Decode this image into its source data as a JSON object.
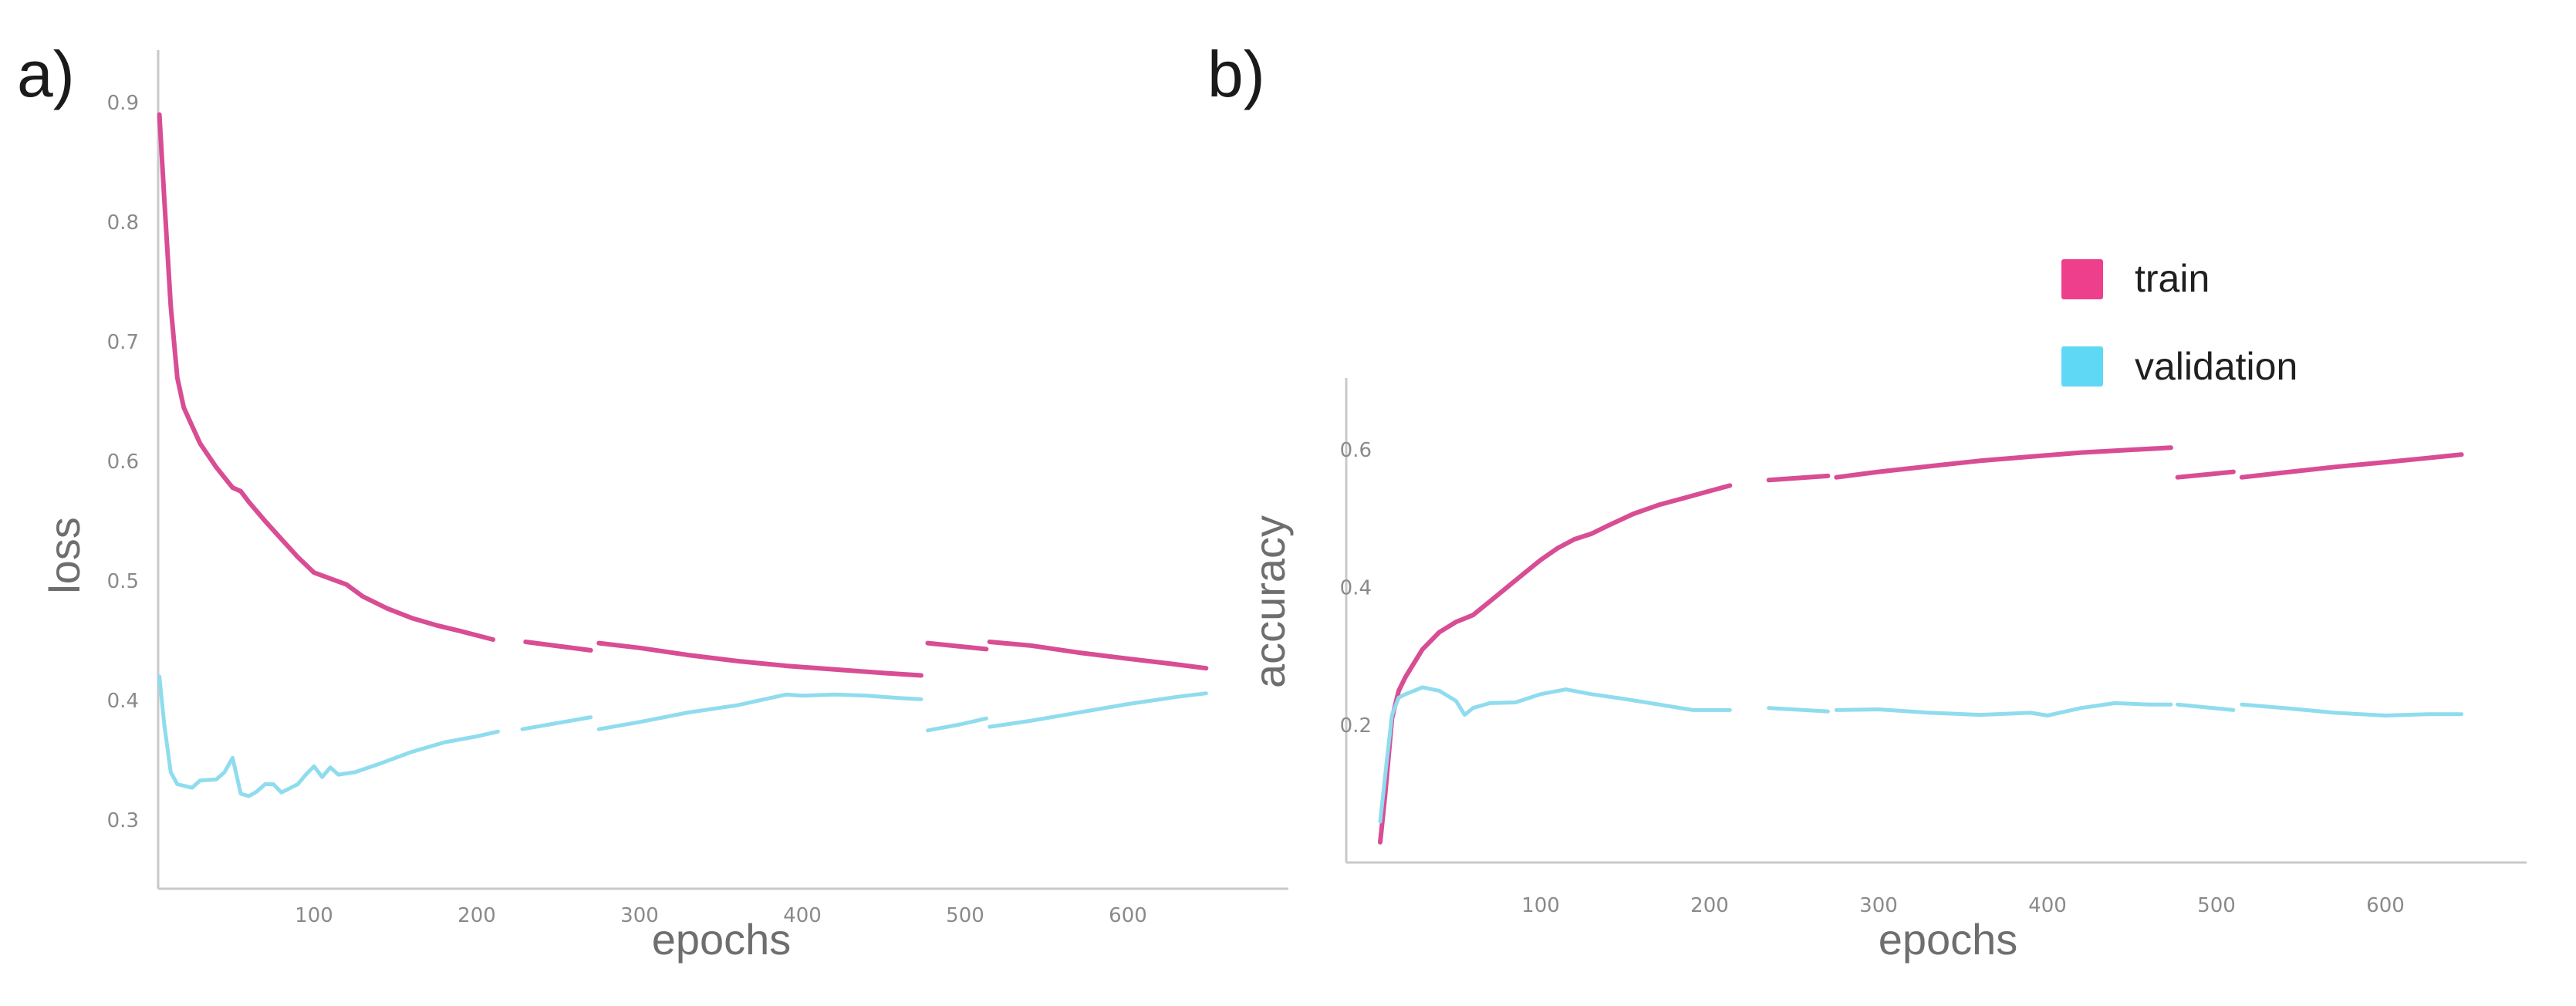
{
  "panel_labels": [
    "a)",
    "b)"
  ],
  "legend": {
    "position": "top-right of panel b",
    "items": [
      {
        "label": "train",
        "color": "#ee3f8c"
      },
      {
        "label": "validation",
        "color": "#5fd8f5"
      }
    ]
  },
  "chart_data": [
    {
      "type": "line",
      "panel": "a)",
      "title": "",
      "xlabel": "epochs",
      "ylabel": "loss",
      "xlim": [
        0,
        700
      ],
      "ylim": [
        0.275,
        0.93
      ],
      "xticks": [
        100,
        200,
        300,
        400,
        500,
        600
      ],
      "yticks": [
        0.3,
        0.4,
        0.5,
        0.6,
        0.7,
        0.8,
        0.9
      ],
      "grid": false,
      "series": [
        {
          "name": "train",
          "color": "#d84d94",
          "segments": [
            [
              [
                5,
                0.89
              ],
              [
                8,
                0.82
              ],
              [
                12,
                0.73
              ],
              [
                16,
                0.67
              ],
              [
                20,
                0.645
              ],
              [
                30,
                0.615
              ],
              [
                40,
                0.595
              ],
              [
                50,
                0.578
              ],
              [
                55,
                0.575
              ],
              [
                60,
                0.566
              ],
              [
                70,
                0.55
              ],
              [
                80,
                0.535
              ],
              [
                90,
                0.52
              ],
              [
                100,
                0.507
              ],
              [
                110,
                0.502
              ],
              [
                120,
                0.497
              ],
              [
                130,
                0.487
              ],
              [
                145,
                0.477
              ],
              [
                160,
                0.469
              ],
              [
                175,
                0.463
              ],
              [
                190,
                0.458
              ],
              [
                210,
                0.451
              ]
            ],
            [
              [
                230,
                0.449
              ],
              [
                270,
                0.442
              ]
            ],
            [
              [
                275,
                0.448
              ],
              [
                300,
                0.444
              ],
              [
                330,
                0.438
              ],
              [
                360,
                0.433
              ],
              [
                390,
                0.429
              ],
              [
                420,
                0.426
              ],
              [
                450,
                0.423
              ],
              [
                473,
                0.421
              ]
            ],
            [
              [
                477,
                0.448
              ],
              [
                513,
                0.443
              ]
            ],
            [
              [
                515,
                0.449
              ],
              [
                540,
                0.446
              ],
              [
                570,
                0.44
              ],
              [
                600,
                0.435
              ],
              [
                625,
                0.431
              ],
              [
                648,
                0.427
              ]
            ]
          ]
        },
        {
          "name": "validation",
          "color": "#8fdcef",
          "segments": [
            [
              [
                5,
                0.42
              ],
              [
                8,
                0.38
              ],
              [
                12,
                0.34
              ],
              [
                16,
                0.33
              ],
              [
                25,
                0.327
              ],
              [
                30,
                0.333
              ],
              [
                40,
                0.334
              ],
              [
                45,
                0.34
              ],
              [
                50,
                0.352
              ],
              [
                55,
                0.322
              ],
              [
                60,
                0.32
              ],
              [
                65,
                0.324
              ],
              [
                70,
                0.33
              ],
              [
                75,
                0.33
              ],
              [
                80,
                0.323
              ],
              [
                90,
                0.33
              ],
              [
                95,
                0.338
              ],
              [
                100,
                0.345
              ],
              [
                105,
                0.336
              ],
              [
                110,
                0.344
              ],
              [
                115,
                0.338
              ],
              [
                125,
                0.34
              ],
              [
                140,
                0.347
              ],
              [
                160,
                0.357
              ],
              [
                180,
                0.365
              ],
              [
                200,
                0.37
              ],
              [
                213,
                0.374
              ]
            ],
            [
              [
                228,
                0.376
              ],
              [
                270,
                0.386
              ]
            ],
            [
              [
                275,
                0.376
              ],
              [
                300,
                0.382
              ],
              [
                330,
                0.39
              ],
              [
                360,
                0.396
              ],
              [
                390,
                0.405
              ],
              [
                400,
                0.404
              ],
              [
                420,
                0.405
              ],
              [
                440,
                0.404
              ],
              [
                460,
                0.402
              ],
              [
                473,
                0.401
              ]
            ],
            [
              [
                477,
                0.375
              ],
              [
                497,
                0.38
              ],
              [
                513,
                0.385
              ]
            ],
            [
              [
                515,
                0.378
              ],
              [
                540,
                0.383
              ],
              [
                570,
                0.39
              ],
              [
                600,
                0.397
              ],
              [
                630,
                0.403
              ],
              [
                648,
                0.406
              ]
            ]
          ]
        }
      ]
    },
    {
      "type": "line",
      "panel": "b)",
      "title": "",
      "xlabel": "epochs",
      "ylabel": "accuracy",
      "xlim": [
        0,
        700
      ],
      "ylim": [
        0,
        0.7
      ],
      "xticks": [
        100,
        200,
        300,
        400,
        500,
        600
      ],
      "yticks": [
        0.2,
        0.4,
        0.6
      ],
      "grid": false,
      "series": [
        {
          "name": "train",
          "color": "#d84d94",
          "segments": [
            [
              [
                5,
                0.03
              ],
              [
                8,
                0.1
              ],
              [
                12,
                0.21
              ],
              [
                16,
                0.25
              ],
              [
                20,
                0.27
              ],
              [
                30,
                0.31
              ],
              [
                40,
                0.335
              ],
              [
                50,
                0.35
              ],
              [
                60,
                0.36
              ],
              [
                70,
                0.38
              ],
              [
                80,
                0.4
              ],
              [
                90,
                0.42
              ],
              [
                100,
                0.44
              ],
              [
                110,
                0.457
              ],
              [
                120,
                0.47
              ],
              [
                130,
                0.478
              ],
              [
                140,
                0.49
              ],
              [
                155,
                0.507
              ],
              [
                170,
                0.52
              ],
              [
                185,
                0.53
              ],
              [
                200,
                0.54
              ],
              [
                212,
                0.548
              ]
            ],
            [
              [
                235,
                0.556
              ],
              [
                270,
                0.562
              ]
            ],
            [
              [
                275,
                0.56
              ],
              [
                300,
                0.568
              ],
              [
                330,
                0.576
              ],
              [
                360,
                0.584
              ],
              [
                390,
                0.59
              ],
              [
                420,
                0.596
              ],
              [
                450,
                0.6
              ],
              [
                473,
                0.603
              ]
            ],
            [
              [
                477,
                0.56
              ],
              [
                510,
                0.568
              ]
            ],
            [
              [
                515,
                0.56
              ],
              [
                540,
                0.567
              ],
              [
                570,
                0.575
              ],
              [
                600,
                0.582
              ],
              [
                625,
                0.588
              ],
              [
                645,
                0.593
              ]
            ]
          ]
        },
        {
          "name": "validation",
          "color": "#8fdcef",
          "segments": [
            [
              [
                5,
                0.06
              ],
              [
                9,
                0.15
              ],
              [
                12,
                0.215
              ],
              [
                16,
                0.24
              ],
              [
                20,
                0.245
              ],
              [
                25,
                0.25
              ],
              [
                30,
                0.255
              ],
              [
                40,
                0.25
              ],
              [
                50,
                0.235
              ],
              [
                55,
                0.215
              ],
              [
                60,
                0.225
              ],
              [
                70,
                0.232
              ],
              [
                85,
                0.233
              ],
              [
                100,
                0.245
              ],
              [
                115,
                0.252
              ],
              [
                130,
                0.245
              ],
              [
                150,
                0.238
              ],
              [
                170,
                0.23
              ],
              [
                190,
                0.222
              ],
              [
                212,
                0.222
              ]
            ],
            [
              [
                235,
                0.225
              ],
              [
                270,
                0.22
              ]
            ],
            [
              [
                275,
                0.222
              ],
              [
                300,
                0.223
              ],
              [
                330,
                0.218
              ],
              [
                360,
                0.215
              ],
              [
                390,
                0.218
              ],
              [
                400,
                0.214
              ],
              [
                420,
                0.225
              ],
              [
                440,
                0.232
              ],
              [
                460,
                0.23
              ],
              [
                473,
                0.23
              ]
            ],
            [
              [
                477,
                0.23
              ],
              [
                510,
                0.222
              ]
            ],
            [
              [
                515,
                0.23
              ],
              [
                540,
                0.225
              ],
              [
                570,
                0.218
              ],
              [
                600,
                0.214
              ],
              [
                625,
                0.216
              ],
              [
                645,
                0.216
              ]
            ]
          ]
        }
      ]
    }
  ]
}
